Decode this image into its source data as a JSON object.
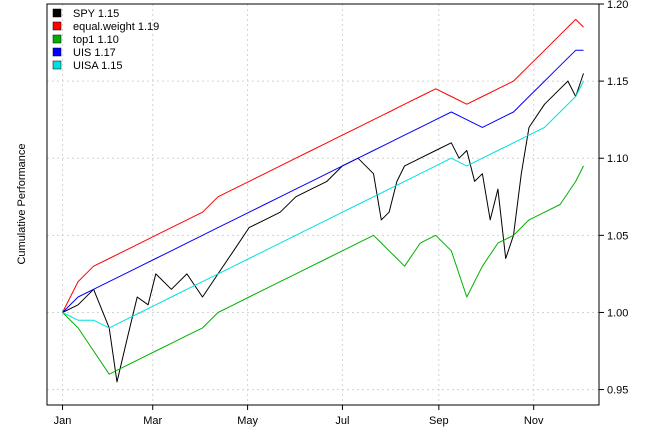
{
  "chart_data": {
    "type": "line",
    "title": "",
    "xlabel": "",
    "ylabel": "Cumulative Performance",
    "x_ticks": [
      "Jan",
      "Mar",
      "May",
      "Jul",
      "Sep",
      "Nov"
    ],
    "x_tick_day": [
      0,
      58,
      119,
      180,
      242,
      303
    ],
    "x_range": [
      -10,
      345
    ],
    "y_ticks": [
      0.95,
      1.0,
      1.05,
      1.1,
      1.15,
      1.2
    ],
    "y_tick_labels": [
      "0.95",
      "1.00",
      "1.05",
      "1.10",
      "1.15",
      "1.20"
    ],
    "ylim": [
      0.94,
      1.2
    ],
    "grid": true,
    "legend_position": "top-left",
    "series": [
      {
        "name": "SPY 1.15",
        "color": "#000000",
        "x": [
          0,
          10,
          20,
          30,
          35,
          42,
          48,
          55,
          60,
          70,
          80,
          90,
          100,
          110,
          120,
          130,
          140,
          150,
          160,
          170,
          180,
          190,
          200,
          205,
          210,
          215,
          220,
          230,
          240,
          250,
          255,
          260,
          265,
          270,
          275,
          280,
          285,
          290,
          295,
          300,
          310,
          320,
          325,
          330,
          335
        ],
        "y": [
          1.0,
          1.005,
          1.015,
          0.99,
          0.955,
          0.985,
          1.01,
          1.005,
          1.025,
          1.015,
          1.025,
          1.01,
          1.025,
          1.04,
          1.055,
          1.06,
          1.065,
          1.075,
          1.08,
          1.085,
          1.095,
          1.1,
          1.09,
          1.06,
          1.065,
          1.085,
          1.095,
          1.1,
          1.105,
          1.11,
          1.1,
          1.105,
          1.085,
          1.09,
          1.06,
          1.08,
          1.035,
          1.05,
          1.09,
          1.12,
          1.135,
          1.145,
          1.15,
          1.14,
          1.155
        ]
      },
      {
        "name": "equal.weight 1.19",
        "color": "#ff0000",
        "x": [
          0,
          10,
          20,
          30,
          40,
          50,
          60,
          70,
          80,
          90,
          100,
          110,
          120,
          130,
          140,
          150,
          160,
          170,
          180,
          190,
          200,
          210,
          220,
          230,
          240,
          250,
          260,
          270,
          280,
          290,
          300,
          310,
          320,
          330,
          335
        ],
        "y": [
          1.0,
          1.02,
          1.03,
          1.035,
          1.04,
          1.045,
          1.05,
          1.055,
          1.06,
          1.065,
          1.075,
          1.08,
          1.085,
          1.09,
          1.095,
          1.1,
          1.105,
          1.11,
          1.115,
          1.12,
          1.125,
          1.13,
          1.135,
          1.14,
          1.145,
          1.14,
          1.135,
          1.14,
          1.145,
          1.15,
          1.16,
          1.17,
          1.18,
          1.19,
          1.185
        ]
      },
      {
        "name": "top1 1.10",
        "color": "#00b000",
        "x": [
          0,
          10,
          20,
          30,
          40,
          50,
          60,
          70,
          80,
          90,
          100,
          110,
          120,
          130,
          140,
          150,
          160,
          170,
          180,
          190,
          200,
          210,
          220,
          230,
          240,
          250,
          260,
          270,
          280,
          290,
          300,
          310,
          320,
          330,
          335
        ],
        "y": [
          1.0,
          0.99,
          0.975,
          0.96,
          0.965,
          0.97,
          0.975,
          0.98,
          0.985,
          0.99,
          1.0,
          1.005,
          1.01,
          1.015,
          1.02,
          1.025,
          1.03,
          1.035,
          1.04,
          1.045,
          1.05,
          1.04,
          1.03,
          1.045,
          1.05,
          1.04,
          1.01,
          1.03,
          1.045,
          1.05,
          1.06,
          1.065,
          1.07,
          1.085,
          1.095
        ]
      },
      {
        "name": "UIS 1.17",
        "color": "#0000ff",
        "x": [
          0,
          10,
          20,
          30,
          40,
          50,
          60,
          70,
          80,
          90,
          100,
          110,
          120,
          130,
          140,
          150,
          160,
          170,
          180,
          190,
          200,
          210,
          220,
          230,
          240,
          250,
          260,
          270,
          280,
          290,
          300,
          310,
          320,
          330,
          335
        ],
        "y": [
          1.0,
          1.01,
          1.015,
          1.02,
          1.025,
          1.03,
          1.035,
          1.04,
          1.045,
          1.05,
          1.055,
          1.06,
          1.065,
          1.07,
          1.075,
          1.08,
          1.085,
          1.09,
          1.095,
          1.1,
          1.105,
          1.11,
          1.115,
          1.12,
          1.125,
          1.13,
          1.125,
          1.12,
          1.125,
          1.13,
          1.14,
          1.15,
          1.16,
          1.17,
          1.17
        ]
      },
      {
        "name": "UISA 1.15",
        "color": "#00e0e0",
        "x": [
          0,
          10,
          20,
          30,
          40,
          50,
          60,
          70,
          80,
          90,
          100,
          110,
          120,
          130,
          140,
          150,
          160,
          170,
          180,
          190,
          200,
          210,
          220,
          230,
          240,
          250,
          260,
          270,
          280,
          290,
          300,
          310,
          320,
          330,
          335
        ],
        "y": [
          1.0,
          0.995,
          0.995,
          0.99,
          0.995,
          1.0,
          1.005,
          1.01,
          1.015,
          1.02,
          1.025,
          1.03,
          1.035,
          1.04,
          1.045,
          1.05,
          1.055,
          1.06,
          1.065,
          1.07,
          1.075,
          1.08,
          1.085,
          1.09,
          1.095,
          1.1,
          1.095,
          1.1,
          1.105,
          1.11,
          1.115,
          1.12,
          1.13,
          1.14,
          1.15
        ]
      }
    ]
  }
}
